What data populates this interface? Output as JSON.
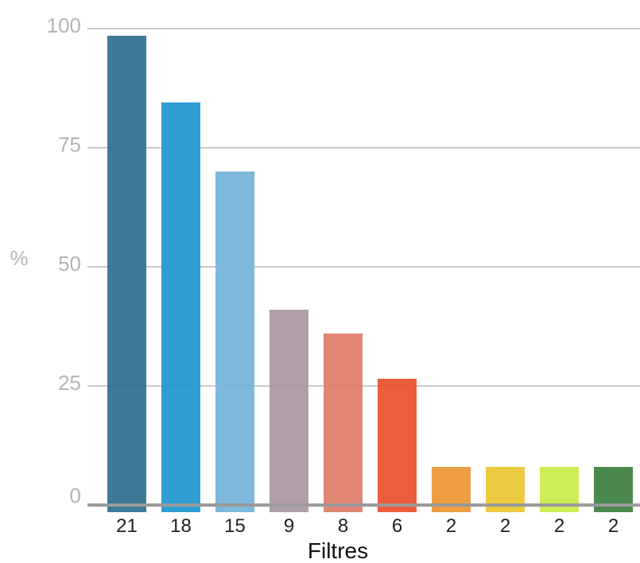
{
  "chart_data": {
    "type": "bar",
    "title": "",
    "xlabel": "Filtres",
    "ylabel": "%",
    "ylim": [
      0,
      100
    ],
    "yticks": [
      0,
      25,
      50,
      75,
      100
    ],
    "grid": true,
    "categories": [
      "21",
      "18",
      "15",
      "9",
      "8",
      "6",
      "2",
      "2",
      "2",
      "2"
    ],
    "values": [
      98.5,
      84.5,
      70,
      41,
      36,
      26.5,
      8,
      8,
      8,
      8
    ],
    "colors": [
      "#2e6f8e",
      "#1e96d1",
      "#73b2d9",
      "#a997a4",
      "#de7c69",
      "#ea4f2a",
      "#ec9630",
      "#ebc730",
      "#c8ec46",
      "#3d7f3f"
    ]
  }
}
